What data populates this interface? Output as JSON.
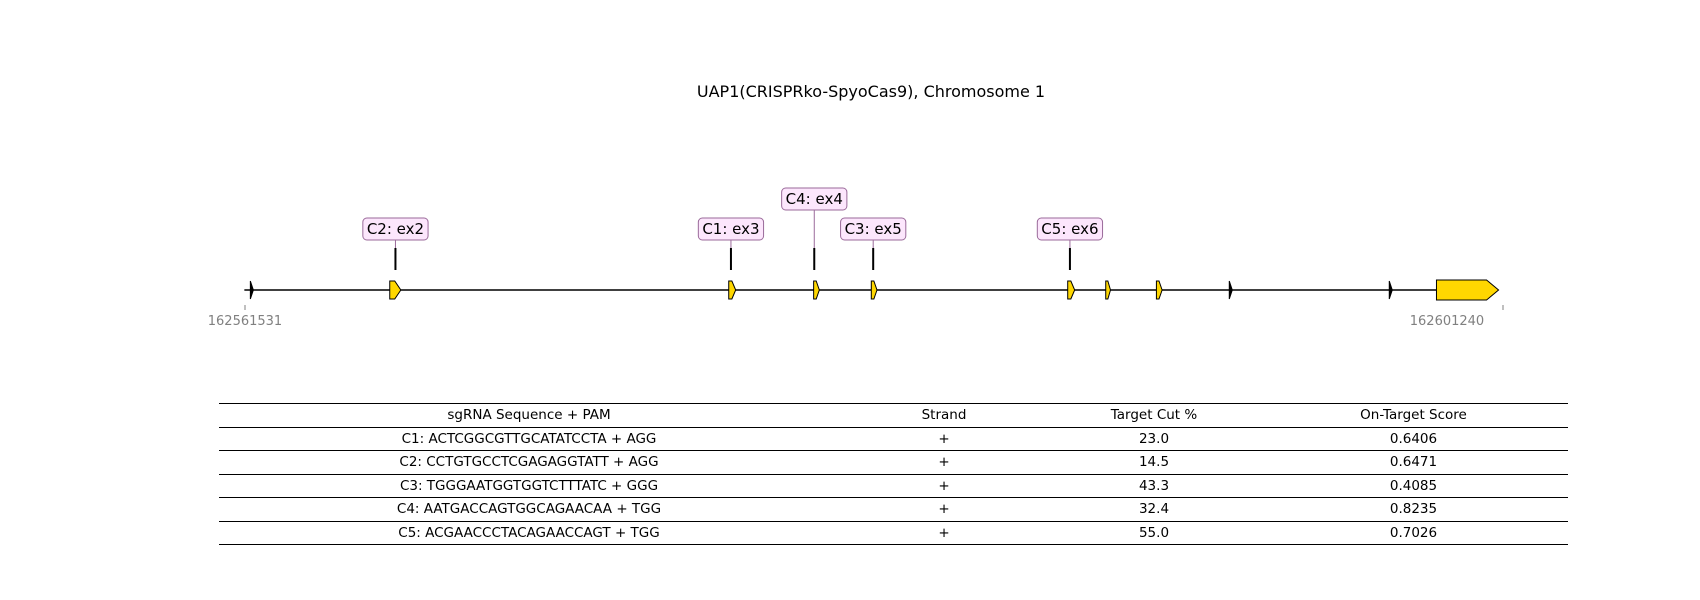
{
  "title": "UAP1(CRISPRko-SpyoCas9), Chromosome 1",
  "coordinates": {
    "start": "162561531",
    "end": "162601240"
  },
  "colors": {
    "exon_fill": "#FFD700",
    "label_fill": "#FCE6FC",
    "label_border": "#9A6A9A",
    "axis_label": "#808080"
  },
  "exons": [
    {
      "id": "ex1",
      "start": 162561700,
      "end": 162561760
    },
    {
      "id": "ex2",
      "start": 162566100,
      "end": 162566450
    },
    {
      "id": "ex3",
      "start": 162576800,
      "end": 162577020
    },
    {
      "id": "ex4",
      "start": 162579480,
      "end": 162579660
    },
    {
      "id": "ex5",
      "start": 162581300,
      "end": 162581480
    },
    {
      "id": "ex6",
      "start": 162587500,
      "end": 162587720
    },
    {
      "id": "ex7",
      "start": 162588700,
      "end": 162588850
    },
    {
      "id": "ex8",
      "start": 162590300,
      "end": 162590480
    },
    {
      "id": "ex9",
      "start": 162592600,
      "end": 162592660
    },
    {
      "id": "ex10",
      "start": 162597650,
      "end": 162597710
    },
    {
      "id": "ex11",
      "start": 162599140,
      "end": 162601100
    }
  ],
  "guides": [
    {
      "label": "C2: ex2",
      "position": 162566280,
      "tier": 1
    },
    {
      "label": "C1: ex3",
      "position": 162576870,
      "tier": 1
    },
    {
      "label": "C4: ex4",
      "position": 162579500,
      "tier": 2
    },
    {
      "label": "C3: ex5",
      "position": 162581360,
      "tier": 1
    },
    {
      "label": "C5: ex6",
      "position": 162587570,
      "tier": 1
    }
  ],
  "table": {
    "headers": [
      "sgRNA Sequence + PAM",
      "Strand",
      "Target Cut %",
      "On-Target Score"
    ],
    "rows": [
      [
        "C1: ACTCGGCGTTGCATATCCTA + AGG",
        "+",
        "23.0",
        "0.6406"
      ],
      [
        "C2: CCTGTGCCTCGAGAGGTATT + AGG",
        "+",
        "14.5",
        "0.6471"
      ],
      [
        "C3: TGGGAATGGTGGTCTTTATC + GGG",
        "+",
        "43.3",
        "0.4085"
      ],
      [
        "C4: AATGACCAGTGGCAGAACAA + TGG",
        "+",
        "32.4",
        "0.8235"
      ],
      [
        "C5: ACGAACCCTACAGAACCAGT + TGG",
        "+",
        "55.0",
        "0.7026"
      ]
    ]
  }
}
